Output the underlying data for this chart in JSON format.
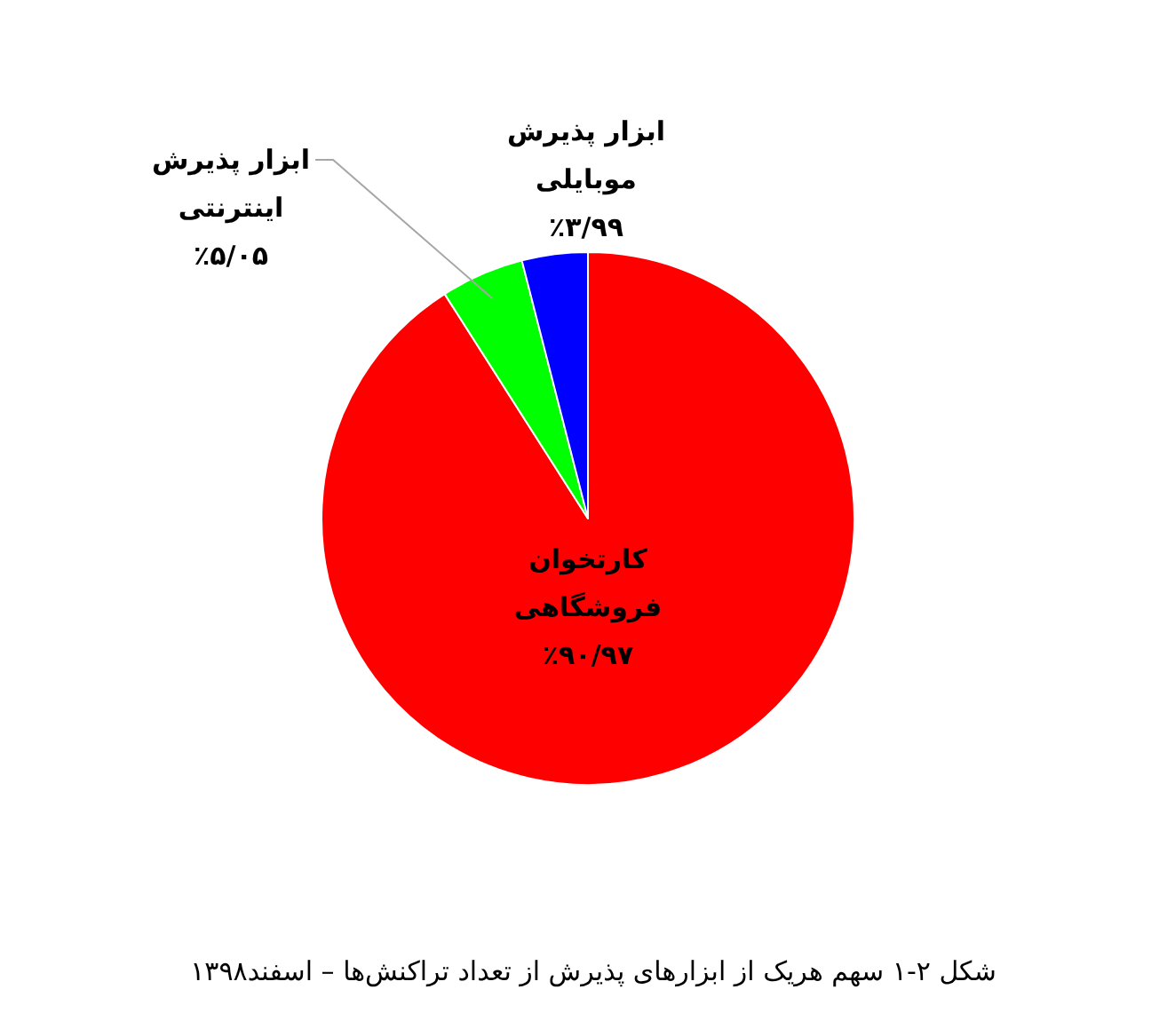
{
  "chart_data": {
    "type": "pie",
    "title": "شکل ۲-۱ سهم هریک از ابزارهای پذیرش از تعداد تراکنش‌ها – اسفند۱۳۹۸",
    "categories": [
      "کارتخوان\nفروشگاهی",
      "ابزار پذیرش\nاینترنتی",
      "ابزار پذیرش\nموبایلی"
    ],
    "values": [
      90.97,
      5.05,
      3.99
    ],
    "colors": [
      "#ff0000",
      "#00ff00",
      "#0000ff"
    ],
    "value_labels": [
      "٪۹۰/۹۷",
      "٪۵/۰۵",
      "٪۳/۹۹"
    ]
  }
}
